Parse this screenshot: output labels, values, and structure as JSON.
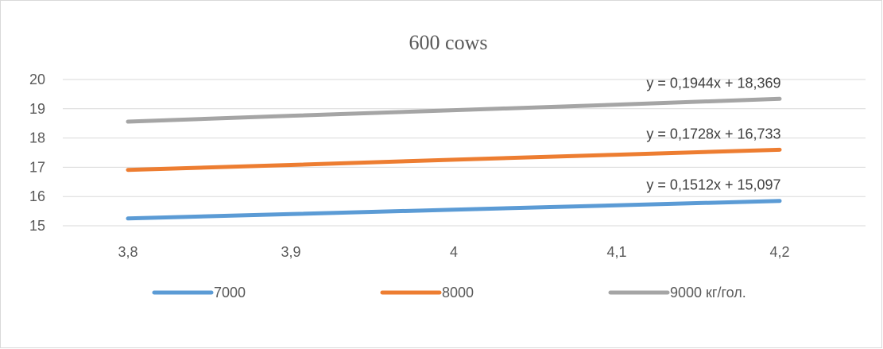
{
  "chart_data": {
    "type": "line",
    "title": "600 cows",
    "x": [
      "3,8",
      "3,9",
      "4",
      "4,1",
      "4,2"
    ],
    "x_values": [
      3.8,
      3.9,
      4.0,
      4.1,
      4.2
    ],
    "y_ticks": [
      "15",
      "16",
      "17",
      "18",
      "19",
      "20"
    ],
    "ylim": [
      15,
      20
    ],
    "grid": true,
    "legend_position": "bottom",
    "series": [
      {
        "name": "7000",
        "color": "#5b9bd5",
        "values": [
          15.25,
          15.4,
          15.55,
          15.7,
          15.85
        ],
        "trendline": "y = 0,1512x + 15,097"
      },
      {
        "name": "8000",
        "color": "#ed7d31",
        "values": [
          16.91,
          17.08,
          17.26,
          17.43,
          17.6
        ],
        "trendline": "y = 0,1728x + 16,733"
      },
      {
        "name": "9000 кг/гол.",
        "color": "#a5a5a5",
        "values": [
          18.56,
          18.76,
          18.95,
          19.14,
          19.34
        ],
        "trendline": "y = 0,1944x + 18,369"
      }
    ]
  }
}
